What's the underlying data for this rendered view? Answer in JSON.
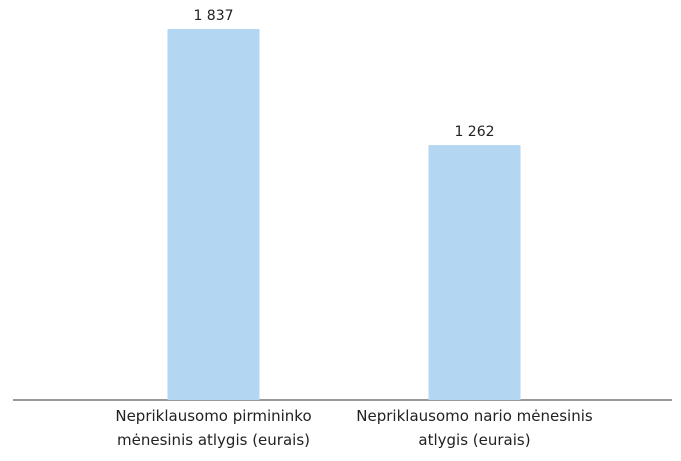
{
  "chart_data": {
    "type": "bar",
    "categories": [
      "Nepriklausomo pirmininko mėnesinis atlygis (eurais)",
      "Nepriklausomo nario mėnesinis atlygis (eurais)"
    ],
    "values": [
      1837,
      1262
    ],
    "value_labels": [
      "1 837",
      "1 262"
    ],
    "color": "#b3d7f3"
  }
}
